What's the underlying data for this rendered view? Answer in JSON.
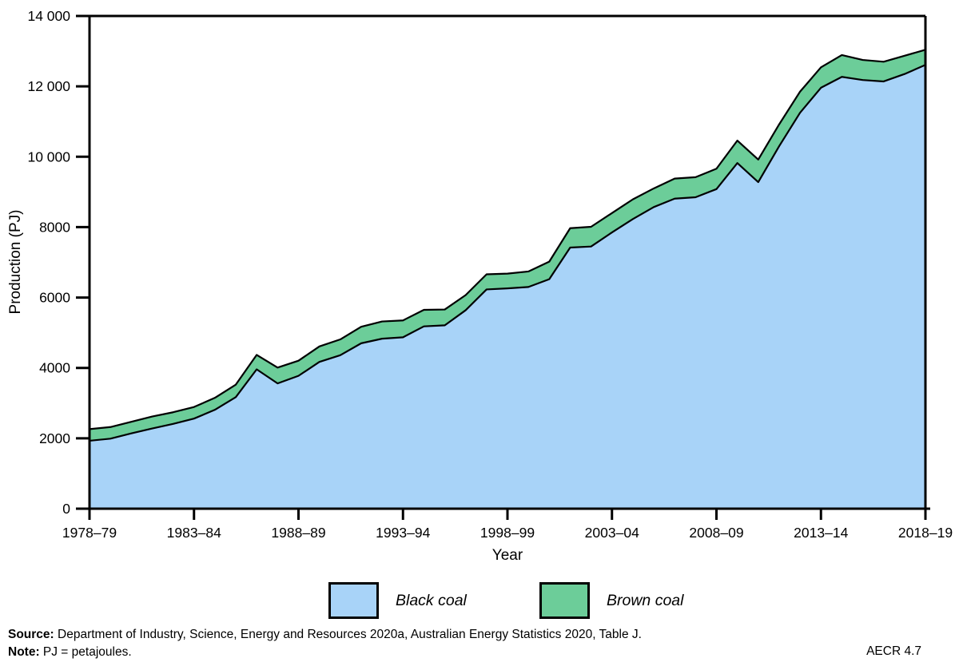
{
  "chart_data": {
    "type": "area",
    "stacked": true,
    "title": "",
    "xlabel": "Year",
    "ylabel": "Production (PJ)",
    "ylim": [
      0,
      14000
    ],
    "grid": false,
    "legend_position": "bottom",
    "y_tick_values": [
      0,
      2000,
      4000,
      6000,
      8000,
      10000,
      12000,
      14000
    ],
    "y_tick_labels": [
      "0",
      "2000",
      "4000",
      "6000",
      "8000",
      "10 000",
      "12 000",
      "14 000"
    ],
    "x_tick_every": 5,
    "x_tick_labels": [
      "1978–79",
      "1983–84",
      "1988–89",
      "1993–94",
      "1998–99",
      "2003–04",
      "2008–09",
      "2013–14",
      "2018–19"
    ],
    "categories": [
      "1978–79",
      "1979–80",
      "1980–81",
      "1981–82",
      "1982–83",
      "1983–84",
      "1984–85",
      "1985–86",
      "1986–87",
      "1987–88",
      "1988–89",
      "1989–90",
      "1990–91",
      "1991–92",
      "1992–93",
      "1993–94",
      "1994–95",
      "1995–96",
      "1996–97",
      "1997–98",
      "1998–99",
      "1999–00",
      "2000–01",
      "2001–02",
      "2002–03",
      "2003–04",
      "2004–05",
      "2005–06",
      "2006–07",
      "2007–08",
      "2008–09",
      "2009–10",
      "2010–11",
      "2011–12",
      "2012–13",
      "2013–14",
      "2014–15",
      "2015–16",
      "2016–17",
      "2017–18",
      "2018–19"
    ],
    "series": [
      {
        "name": "Black coal",
        "color": "#a8d3f8",
        "values": [
          1930,
          1990,
          2140,
          2280,
          2410,
          2560,
          2810,
          3170,
          3960,
          3560,
          3775,
          4170,
          4360,
          4700,
          4830,
          4870,
          5180,
          5210,
          5640,
          6230,
          6260,
          6300,
          6520,
          7420,
          7450,
          7850,
          8230,
          8570,
          8810,
          8850,
          9080,
          9820,
          9280,
          10300,
          11250,
          11960,
          12270,
          12180,
          12140,
          12350,
          12610
        ]
      },
      {
        "name": "Brown coal",
        "color": "#6ccd99",
        "values": [
          330,
          330,
          330,
          340,
          330,
          330,
          340,
          355,
          410,
          450,
          430,
          440,
          450,
          470,
          490,
          480,
          470,
          450,
          430,
          430,
          420,
          440,
          500,
          550,
          560,
          550,
          560,
          530,
          570,
          570,
          580,
          640,
          640,
          620,
          600,
          580,
          620,
          570,
          560,
          520,
          430
        ]
      }
    ],
    "outline_color": "#000000"
  },
  "legend": {
    "items": [
      {
        "label": "Black coal",
        "color": "#a8d3f8"
      },
      {
        "label": "Brown coal",
        "color": "#6ccd99"
      }
    ]
  },
  "footer": {
    "source_label": "Source:",
    "source_text": " Department of Industry, Science, Energy and Resources 2020a, Australian Energy Statistics 2020, Table J.",
    "note_label": "Note:",
    "note_text": " PJ = petajoules.",
    "figure_ref": "AECR 4.7"
  }
}
